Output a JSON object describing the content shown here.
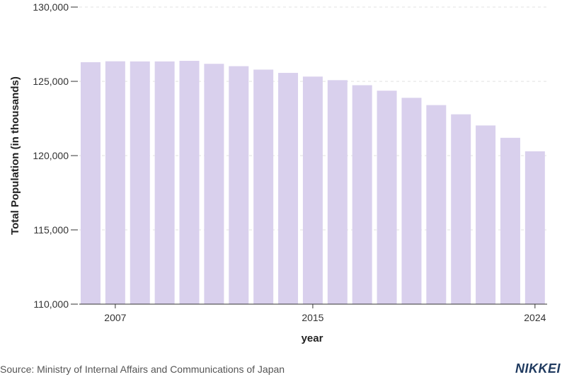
{
  "chart_data": {
    "type": "bar",
    "title": "",
    "xlabel": "year",
    "ylabel": "Total Population (in thousands)",
    "categories": [
      "2006",
      "2007",
      "2008",
      "2009",
      "2010",
      "2011",
      "2012",
      "2013",
      "2014",
      "2015",
      "2016",
      "2017",
      "2018",
      "2019",
      "2020",
      "2021",
      "2022",
      "2023",
      "2024"
    ],
    "values": [
      126290,
      126350,
      126340,
      126340,
      126380,
      126180,
      126020,
      125790,
      125570,
      125320,
      125080,
      124740,
      124370,
      123890,
      123400,
      122780,
      122030,
      121200,
      120290
    ],
    "ylim": [
      110000,
      130000
    ],
    "yticks": [
      110000,
      115000,
      120000,
      125000,
      130000
    ],
    "ytick_labels": [
      "110,000",
      "115,000",
      "120,000",
      "125,000",
      "130,000"
    ],
    "xtick_labels": [
      "2007",
      "2015",
      "2024"
    ],
    "grid": true
  },
  "colors": {
    "bar": "#d9d0ed",
    "grid": "#e2e2e2",
    "axis": "#333333",
    "logo": "#1f3a5f"
  },
  "footer": {
    "source": "Source: Ministry of Internal Affairs and Communications of Japan",
    "logo": "NIKKEI"
  }
}
